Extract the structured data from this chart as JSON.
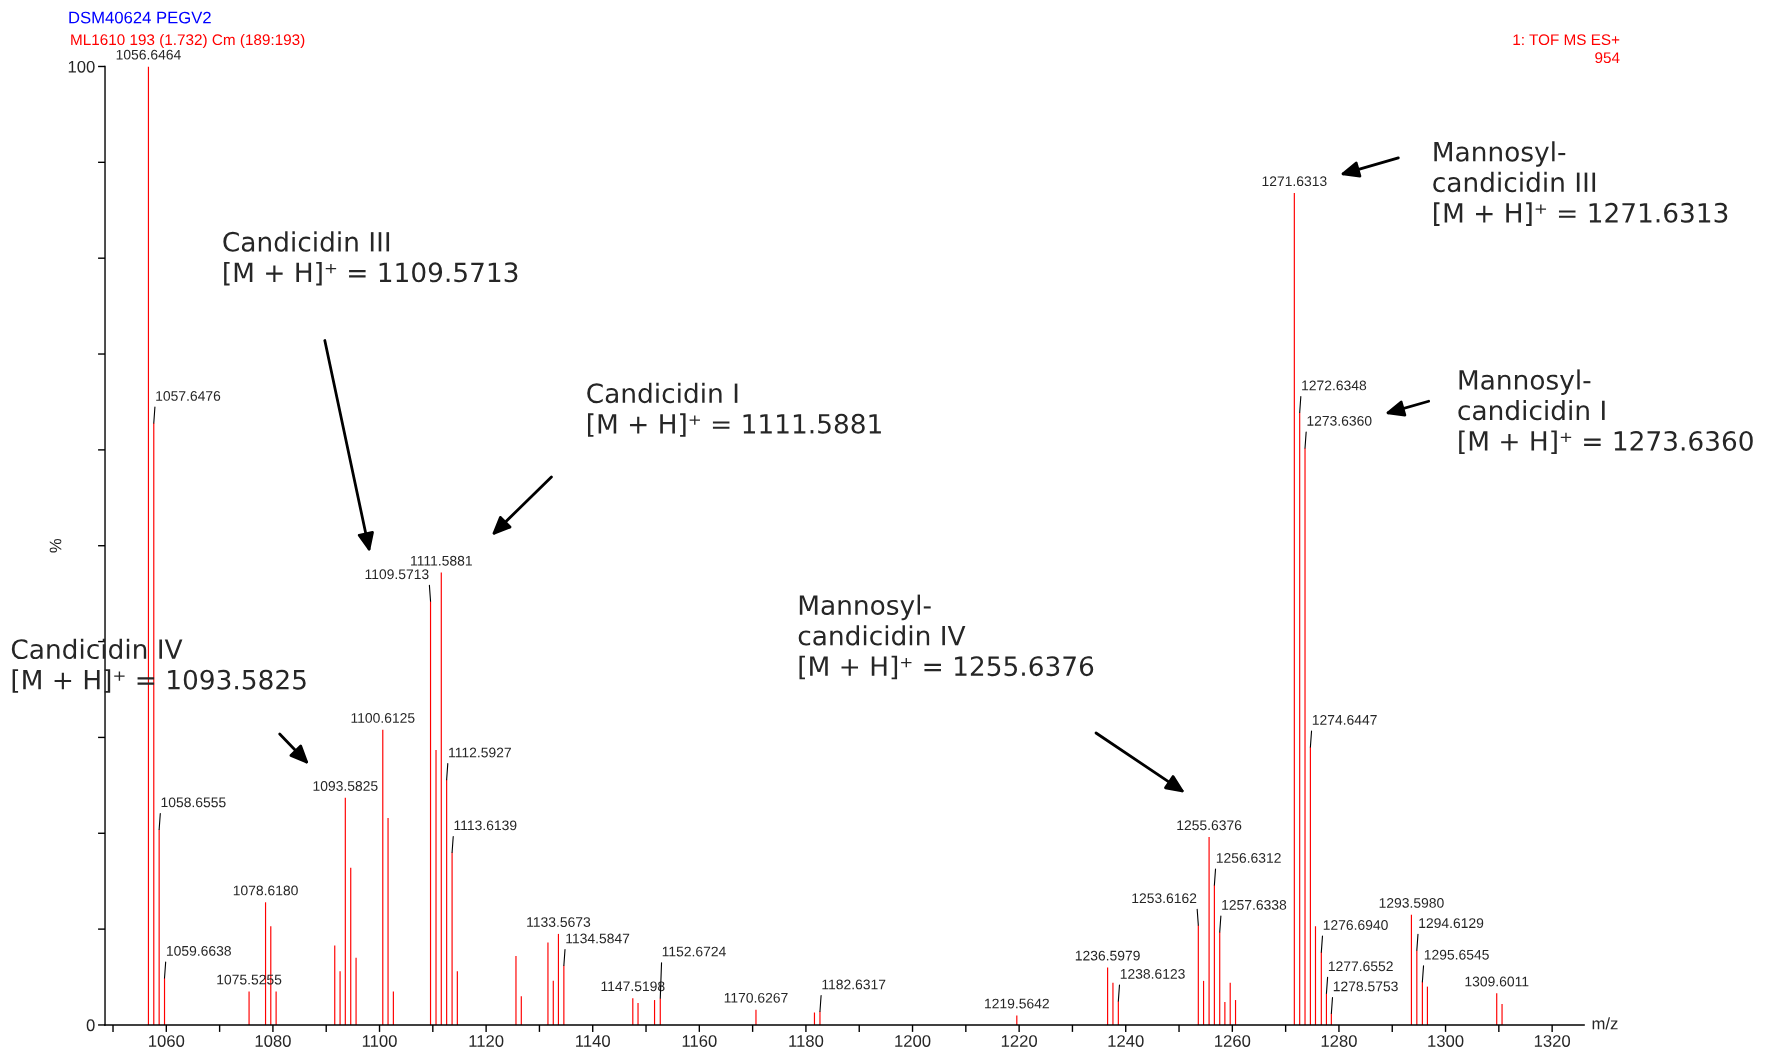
{
  "chart_data": {
    "type": "bar",
    "title": "DSM40624 PEGV2",
    "subtitle": "ML1610 193 (1.732) Cm (189:193)",
    "xlabel": "m/z",
    "ylabel": "%",
    "x": [
      1056.6464,
      1057.6476,
      1058.6555,
      1059.6638,
      1075.5255,
      1078.618,
      1079.6,
      1080.6,
      1091.6,
      1092.6,
      1093.5825,
      1094.6,
      1095.6,
      1100.6125,
      1101.6,
      1102.6,
      1109.5713,
      1110.6,
      1111.5881,
      1112.5927,
      1113.6139,
      1114.6,
      1125.6,
      1126.6,
      1131.6,
      1132.6,
      1133.5673,
      1134.5847,
      1147.5198,
      1148.5,
      1151.6,
      1152.6724,
      1170.6267,
      1181.6,
      1182.6317,
      1219.5642,
      1236.5979,
      1237.6,
      1238.6123,
      1253.6162,
      1254.6,
      1255.6376,
      1256.6312,
      1257.6338,
      1258.6,
      1259.6,
      1260.6,
      1271.6313,
      1272.6348,
      1273.636,
      1274.6447,
      1275.6,
      1276.694,
      1277.6552,
      1278.5753,
      1293.598,
      1294.6129,
      1295.6545,
      1296.6,
      1309.6011,
      1310.6
    ],
    "series": [
      {
        "color": "#ff0000",
        "values": [
          100,
          62.8,
          20.4,
          4.9,
          3.5,
          12.8,
          10.3,
          3.5,
          8.3,
          5.6,
          23.7,
          16.4,
          7.0,
          30.8,
          21.6,
          3.5,
          44.2,
          28.7,
          47.2,
          25.6,
          18.0,
          5.6,
          7.2,
          3.0,
          8.6,
          4.6,
          9.5,
          6.2,
          2.8,
          2.3,
          2.6,
          2.8,
          1.6,
          1.3,
          1.4,
          1.0,
          6.0,
          4.4,
          2.5,
          10.4,
          4.6,
          19.6,
          14.6,
          9.7,
          2.4,
          4.4,
          2.6,
          86.8,
          63.9,
          60.2,
          29.0,
          10.3,
          7.6,
          3.3,
          1.2,
          11.5,
          7.8,
          4.5,
          4.0,
          3.3,
          2.2
        ]
      }
    ],
    "xlim": [
      1048.5,
      1326
    ],
    "ylim": [
      0,
      100
    ],
    "xticks": [
      {
        "value": 1050,
        "label": null
      },
      1060,
      {
        "value": 1070,
        "label": null
      },
      1080,
      {
        "value": 1090,
        "label": null
      },
      1100,
      {
        "value": 1110,
        "label": null
      },
      1120,
      {
        "value": 1130,
        "label": null
      },
      1140,
      {
        "value": 1150,
        "label": null
      },
      1160,
      {
        "value": 1170,
        "label": null
      },
      1180,
      {
        "value": 1190,
        "label": null
      },
      1200,
      {
        "value": 1210,
        "label": null
      },
      1220,
      {
        "value": 1230,
        "label": null
      },
      1240,
      {
        "value": 1250,
        "label": null
      },
      1260,
      {
        "value": 1270,
        "label": null
      },
      1280,
      {
        "value": 1290,
        "label": null
      },
      1300,
      {
        "value": 1310,
        "label": null
      },
      1320
    ],
    "yticks": [
      0,
      {
        "value": 10,
        "label": null
      },
      {
        "value": 20,
        "label": null
      },
      {
        "value": 30,
        "label": null
      },
      {
        "value": 40,
        "label": null
      },
      {
        "value": 50,
        "label": null
      },
      {
        "value": 60,
        "label": null
      },
      {
        "value": 70,
        "label": null
      },
      {
        "value": 80,
        "label": null
      },
      {
        "value": 90,
        "label": null
      },
      100
    ],
    "annotations": [
      "1: TOF MS ES+",
      "954",
      "Candicidin III\n[M + H]⁺ = 1109.5713",
      "Candicidin I\n[M + H]⁺ = 1111.5881",
      "Candicidin IV\n[M + H]⁺ = 1093.5825",
      "Mannosyl-\ncandicidin IV\n[M + H]⁺ = 1255.6376",
      "Mannosyl-\ncandicidin III\n[M + H]⁺ = 1271.6313",
      "Mannosyl-\ncandicidin I\n[M + H]⁺ = 1273.6360",
      {
        "text": "1056.6464",
        "x": 1056.6464,
        "y": 100
      },
      {
        "text": "1057.6476",
        "x": 1057.6476,
        "y": 62.8
      },
      {
        "text": "1058.6555",
        "x": 1058.6555,
        "y": 20.4
      },
      {
        "text": "1059.6638",
        "x": 1059.6638,
        "y": 4.9
      },
      {
        "text": "1075.5255",
        "x": 1075.5255,
        "y": 3.5
      },
      {
        "text": "1078.6180",
        "x": 1078.618,
        "y": 12.8
      },
      {
        "text": "1093.5825",
        "x": 1093.5825,
        "y": 23.7
      },
      {
        "text": "1100.6125",
        "x": 1100.6125,
        "y": 30.8
      },
      {
        "text": "1109.5713",
        "x": 1109.5713,
        "y": 44.2
      },
      {
        "text": "1111.5881",
        "x": 1111.5881,
        "y": 47.2
      },
      {
        "text": "1112.5927",
        "x": 1112.5927,
        "y": 25.6
      },
      {
        "text": "1113.6139",
        "x": 1113.6139,
        "y": 18.0
      },
      {
        "text": "1133.5673",
        "x": 1133.5673,
        "y": 9.5
      },
      {
        "text": "1134.5847",
        "x": 1134.5847,
        "y": 6.2
      },
      {
        "text": "1147.5198",
        "x": 1147.5198,
        "y": 2.8
      },
      {
        "text": "1152.6724",
        "x": 1152.6724,
        "y": 2.8
      },
      {
        "text": "1170.6267",
        "x": 1170.6267,
        "y": 1.6
      },
      {
        "text": "1182.6317",
        "x": 1182.6317,
        "y": 1.4
      },
      {
        "text": "1219.5642",
        "x": 1219.5642,
        "y": 1.0
      },
      {
        "text": "1236.5979",
        "x": 1236.5979,
        "y": 6.0
      },
      {
        "text": "1238.6123",
        "x": 1238.6123,
        "y": 2.5
      },
      {
        "text": "1253.6162",
        "x": 1253.6162,
        "y": 10.4
      },
      {
        "text": "1255.6376",
        "x": 1255.6376,
        "y": 19.6
      },
      {
        "text": "1256.6312",
        "x": 1256.6312,
        "y": 14.6
      },
      {
        "text": "1257.6338",
        "x": 1257.6338,
        "y": 9.7
      },
      {
        "text": "1271.6313",
        "x": 1271.6313,
        "y": 86.8
      },
      {
        "text": "1272.6348",
        "x": 1272.6348,
        "y": 63.9
      },
      {
        "text": "1273.6360",
        "x": 1273.636,
        "y": 60.2
      },
      {
        "text": "1274.6447",
        "x": 1274.6447,
        "y": 29.0
      },
      {
        "text": "1276.6940",
        "x": 1276.694,
        "y": 7.6
      },
      {
        "text": "1277.6552",
        "x": 1277.6552,
        "y": 3.3
      },
      {
        "text": "1278.5753",
        "x": 1278.5753,
        "y": 1.2
      },
      {
        "text": "1293.5980",
        "x": 1293.598,
        "y": 11.5
      },
      {
        "text": "1294.6129",
        "x": 1294.6129,
        "y": 7.8
      },
      {
        "text": "1295.6545",
        "x": 1295.6545,
        "y": 4.5
      },
      {
        "text": "1309.6011",
        "x": 1309.6011,
        "y": 3.3
      }
    ]
  }
}
